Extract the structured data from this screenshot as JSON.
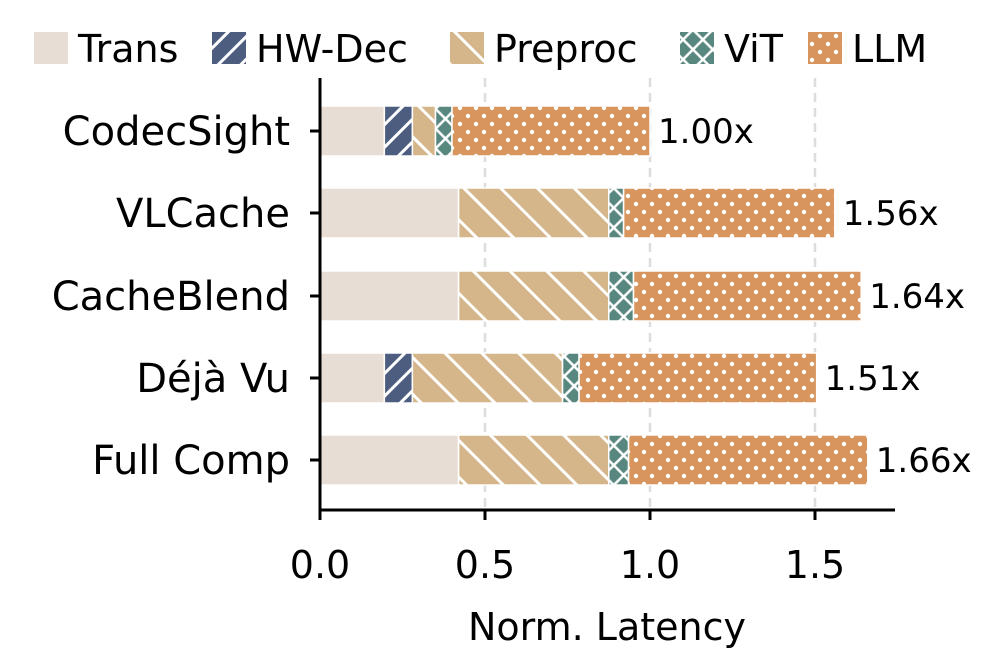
{
  "chart_data": {
    "type": "bar",
    "orientation": "horizontal",
    "stacked": true,
    "categories": [
      "CodecSight",
      "VLCache",
      "CacheBlend",
      "Déjà Vu",
      "Full Comp"
    ],
    "series": [
      {
        "name": "Trans",
        "color": "#e8ddd5",
        "pattern": "none",
        "values": [
          0.195,
          0.42,
          0.42,
          0.195,
          0.42
        ]
      },
      {
        "name": "HW-Dec",
        "color": "#4c5d80",
        "pattern": "slash",
        "values": [
          0.085,
          0,
          0,
          0.085,
          0
        ]
      },
      {
        "name": "Preproc",
        "color": "#d5b68a",
        "pattern": "backslash",
        "values": [
          0.07,
          0.455,
          0.455,
          0.455,
          0.455
        ]
      },
      {
        "name": "ViT",
        "color": "#57877f",
        "pattern": "cross",
        "values": [
          0.05,
          0.045,
          0.075,
          0.05,
          0.06
        ]
      },
      {
        "name": "LLM",
        "color": "#d8965e",
        "pattern": "dots",
        "values": [
          0.6,
          0.64,
          0.69,
          0.72,
          0.725
        ]
      }
    ],
    "data_labels": [
      "1.00x",
      "1.56x",
      "1.64x",
      "1.51x",
      "1.66x"
    ],
    "data_label_values": [
      1.0,
      1.56,
      1.64,
      1.51,
      1.66
    ],
    "xlabel": "Norm. Latency",
    "ylabel": "",
    "xlim": [
      0,
      1.75
    ],
    "xticks": [
      0.0,
      0.5,
      1.0,
      1.5
    ],
    "xtick_labels": [
      "0.0",
      "0.5",
      "1.0",
      "1.5"
    ],
    "grid": "vertical-dashed",
    "legend_position": "top"
  }
}
